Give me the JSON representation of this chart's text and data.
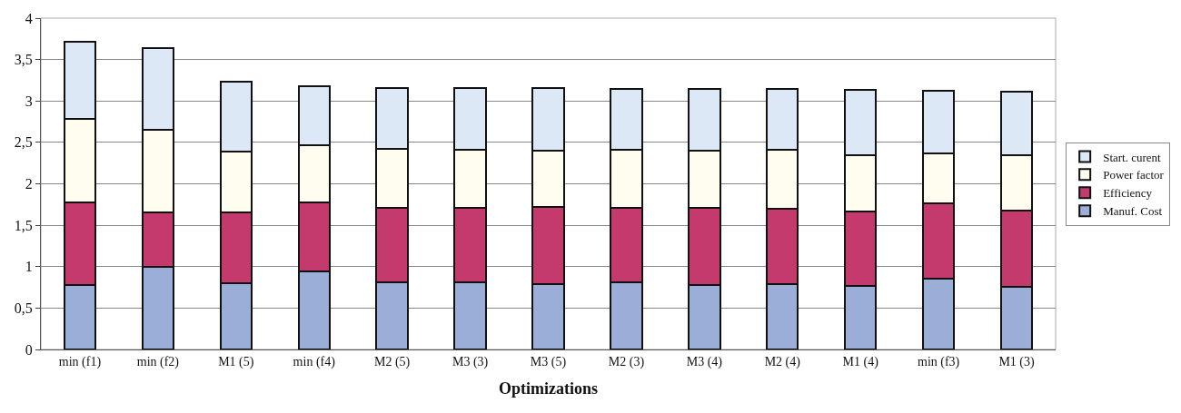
{
  "chart_data": {
    "type": "bar",
    "stacked": true,
    "xlabel": "Optimizations",
    "categories": [
      "min (f1)",
      "min (f2)",
      "M1 (5)",
      "min (f4)",
      "M2 (5)",
      "M3 (3)",
      "M3 (5)",
      "M2 (3)",
      "M3 (4)",
      "M2 (4)",
      "M1 (4)",
      "min (f3)",
      "M1 (3)"
    ],
    "series": [
      {
        "name": "Manuf. Cost",
        "color": "#9aaed8",
        "values": [
          0.78,
          1.0,
          0.8,
          0.94,
          0.81,
          0.81,
          0.79,
          0.81,
          0.78,
          0.79,
          0.77,
          0.85,
          0.76
        ]
      },
      {
        "name": "Efficiency",
        "color": "#c43a6c",
        "values": [
          1.0,
          0.65,
          0.85,
          0.83,
          0.9,
          0.9,
          0.93,
          0.9,
          0.93,
          0.91,
          0.9,
          0.91,
          0.92
        ]
      },
      {
        "name": "Power factor",
        "color": "#fffcf0",
        "values": [
          1.0,
          1.0,
          0.74,
          0.7,
          0.71,
          0.7,
          0.68,
          0.7,
          0.69,
          0.71,
          0.67,
          0.61,
          0.66
        ]
      },
      {
        "name": "Start. curent",
        "color": "#dce8f6",
        "values": [
          0.94,
          0.99,
          0.84,
          0.71,
          0.74,
          0.75,
          0.76,
          0.74,
          0.75,
          0.74,
          0.79,
          0.75,
          0.77
        ]
      }
    ],
    "ylim": [
      0,
      4
    ],
    "yticks": [
      0,
      {
        "value": 0.5,
        "label": "0,5"
      },
      1,
      {
        "value": 1.5,
        "label": "1,5"
      },
      2,
      {
        "value": 2.5,
        "label": "2,5"
      },
      3,
      {
        "value": 3.5,
        "label": "3,5"
      },
      4
    ],
    "grid": "y",
    "legend": "right"
  }
}
